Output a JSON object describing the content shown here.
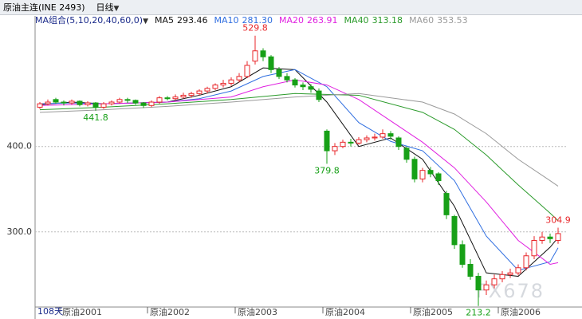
{
  "header": {
    "symbol": "原油主连(INE 2493)",
    "period": "日线"
  },
  "chart_data": {
    "type": "candlestick",
    "ma_group": "MA组合(5,10,20,40,60,0)",
    "period_label": "108天",
    "watermark": "FX678",
    "categories": [
      null,
      null,
      null,
      null,
      null,
      null,
      "原油2001",
      null,
      null,
      null,
      null,
      null,
      null,
      null,
      null,
      null,
      null,
      "原油2002",
      null,
      null,
      null,
      null,
      null,
      null,
      null,
      null,
      null,
      null,
      "原油2003",
      null,
      null,
      null,
      null,
      null,
      null,
      null,
      null,
      null,
      null,
      "原油2004",
      null,
      null,
      null,
      null,
      null,
      null,
      null,
      null,
      null,
      null,
      "原油2005",
      null,
      null,
      null,
      null,
      null,
      null,
      null,
      null,
      null,
      null,
      "原油2006",
      null,
      null,
      null,
      null
    ],
    "open": [
      446,
      450,
      455,
      452,
      451,
      453,
      449,
      451,
      446,
      450,
      452,
      455,
      454,
      451,
      448,
      452,
      457,
      456,
      458,
      460,
      462,
      465,
      468,
      472,
      474,
      478,
      482,
      500,
      512,
      505,
      490,
      482,
      478,
      472,
      470,
      465,
      418,
      395,
      400,
      405,
      404,
      408,
      410,
      411,
      415,
      410,
      398,
      385,
      362,
      372,
      368,
      345,
      318,
      285,
      262,
      248,
      232,
      238,
      245,
      250,
      252,
      258,
      272,
      290,
      294,
      290
    ],
    "high": [
      452,
      455,
      457,
      454,
      455,
      454,
      453,
      452,
      452,
      454,
      457,
      457,
      455,
      452,
      454,
      459,
      459,
      461,
      463,
      464,
      467,
      470,
      474,
      478,
      481,
      486,
      500,
      529.8,
      515,
      507,
      493,
      486,
      480,
      475,
      473,
      468,
      420,
      404,
      408,
      409,
      411,
      413,
      415,
      420,
      418,
      412,
      400,
      388,
      375,
      376,
      370,
      348,
      320,
      290,
      268,
      252,
      243,
      250,
      254,
      257,
      262,
      276,
      295,
      300,
      298,
      304.9
    ],
    "low": [
      444,
      448,
      450,
      448,
      449,
      447,
      447,
      441.8,
      444,
      448,
      450,
      451,
      449,
      445,
      446,
      450,
      454,
      454,
      456,
      457,
      460,
      462,
      466,
      469,
      471,
      475,
      480,
      496,
      500,
      486,
      479,
      475,
      469,
      466,
      463,
      452,
      379.8,
      390,
      398,
      400,
      402,
      405,
      407,
      409,
      408,
      396,
      381,
      358,
      358,
      364,
      355,
      315,
      280,
      258,
      244,
      213.2,
      226,
      234,
      241,
      246,
      249,
      255,
      268,
      286,
      287,
      286
    ],
    "close": [
      450,
      452,
      452,
      451,
      453,
      449,
      451,
      446,
      450,
      452,
      455,
      454,
      451,
      448,
      452,
      457,
      456,
      458,
      460,
      462,
      465,
      468,
      472,
      474,
      478,
      482,
      495,
      512,
      505,
      490,
      482,
      478,
      472,
      470,
      467,
      455,
      395,
      400,
      405,
      404,
      408,
      410,
      411,
      415,
      412,
      400,
      385,
      362,
      372,
      368,
      360,
      320,
      285,
      262,
      248,
      232,
      238,
      245,
      250,
      252,
      258,
      272,
      290,
      294,
      292,
      298
    ],
    "up_color": "#e8262a",
    "down_color": "#17a017",
    "annotations": [
      {
        "index": 27,
        "field": "high"
      },
      {
        "index": 7,
        "field": "low"
      },
      {
        "index": 36,
        "field": "low"
      },
      {
        "index": 55,
        "field": "low"
      },
      {
        "index": 65,
        "field": "high"
      }
    ],
    "ylim": [
      212,
      551
    ],
    "yticks": [
      {
        "value": 300,
        "label": "300.0"
      },
      {
        "value": 400,
        "label": "400.0"
      }
    ],
    "grid": true,
    "series": [
      {
        "name": "MA5",
        "legend_value": "293.46",
        "color": "#111111",
        "x": [
          0,
          4,
          8,
          12,
          16,
          20,
          24,
          28,
          32,
          36,
          40,
          44,
          48,
          52,
          56,
          60,
          64,
          65
        ],
        "values": [
          449,
          452,
          450,
          451,
          452,
          460,
          470,
          492,
          490,
          452,
          400,
          410,
          385,
          330,
          252,
          248,
          282,
          293.46
        ]
      },
      {
        "name": "MA10",
        "legend_value": "281.30",
        "color": "#2f6ee0",
        "x": [
          0,
          4,
          8,
          12,
          16,
          20,
          24,
          28,
          32,
          36,
          40,
          44,
          48,
          52,
          56,
          60,
          64,
          65
        ],
        "values": [
          450,
          451,
          450,
          451,
          452,
          456,
          465,
          482,
          490,
          470,
          428,
          406,
          395,
          360,
          295,
          255,
          265,
          281.3
        ]
      },
      {
        "name": "MA20",
        "legend_value": "263.91",
        "color": "#e020e0",
        "x": [
          0,
          8,
          16,
          24,
          28,
          32,
          36,
          40,
          44,
          48,
          52,
          56,
          60,
          64,
          65
        ],
        "values": [
          448,
          450,
          452,
          458,
          470,
          478,
          472,
          455,
          430,
          405,
          375,
          335,
          290,
          262,
          263.91
        ]
      },
      {
        "name": "MA40",
        "legend_value": "313.18",
        "color": "#2a9a2a",
        "x": [
          0,
          8,
          16,
          24,
          32,
          40,
          48,
          52,
          56,
          60,
          64,
          65
        ],
        "values": [
          443,
          446,
          450,
          455,
          462,
          460,
          440,
          420,
          390,
          355,
          322,
          313.18
        ]
      },
      {
        "name": "MA60",
        "legend_value": "353.53",
        "color": "#9a9a9a",
        "x": [
          0,
          8,
          16,
          24,
          32,
          40,
          48,
          52,
          56,
          60,
          64,
          65
        ],
        "values": [
          440,
          443,
          447,
          452,
          458,
          462,
          452,
          438,
          415,
          385,
          360,
          353.53
        ]
      }
    ]
  }
}
